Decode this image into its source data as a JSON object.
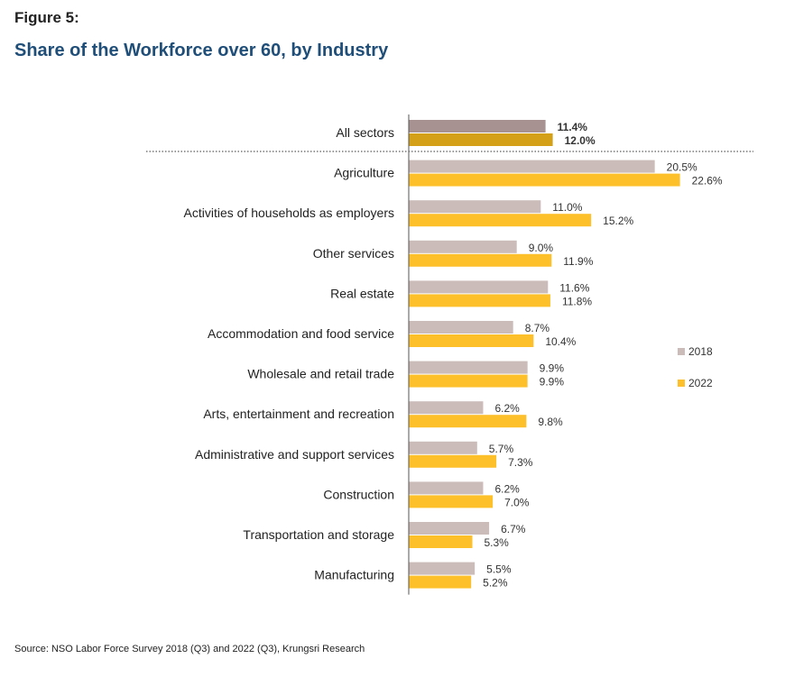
{
  "figure_label": "Figure 5:",
  "title": "Share of the Workforce over 60, by Industry",
  "source": "Source: NSO Labor Force Survey 2018 (Q3) and 2022 (Q3), Krungsri Research",
  "colors": {
    "total_2018": "#a89291",
    "total_2022": "#d4a017",
    "bar_2018": "#cbbcba",
    "bar_2022": "#fdc02a",
    "total_label_2018": "#5b3f3f",
    "total_label_2022": "#9a7000"
  },
  "chart_data": {
    "type": "bar",
    "orientation": "horizontal",
    "value_suffix": "%",
    "categories": [
      "All sectors",
      "Agriculture",
      "Activities of households as employers",
      "Other services",
      "Real estate",
      "Accommodation and food service",
      "Wholesale and retail trade",
      "Arts, entertainment and recreation",
      "Administrative and support services",
      "Construction",
      "Transportation and storage",
      "Manufacturing"
    ],
    "series": [
      {
        "name": "2018",
        "values": [
          11.4,
          20.5,
          11.0,
          9.0,
          11.6,
          8.7,
          9.9,
          6.2,
          5.7,
          6.2,
          6.7,
          5.5
        ]
      },
      {
        "name": "2022",
        "values": [
          12.0,
          22.6,
          15.2,
          11.9,
          11.8,
          10.4,
          9.9,
          9.8,
          7.3,
          7.0,
          5.3,
          5.2
        ]
      }
    ],
    "legend": [
      "2018",
      "2022"
    ],
    "legend_position": "right",
    "grid": false
  }
}
